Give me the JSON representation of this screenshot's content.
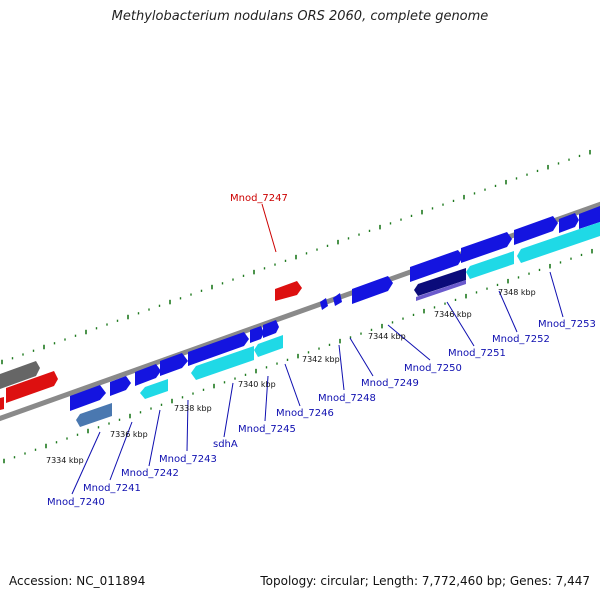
{
  "title": "Methylobacterium nodulans ORS 2060, complete genome",
  "footer": {
    "accession": "Accession: NC_011894",
    "stats": "Topology: circular; Length: 7,772,460 bp; Genes: 7,447"
  },
  "colors": {
    "backbone": "#8a8a8a",
    "forward_gene": "#1414e0",
    "reverse_gene": "#1fd9e6",
    "ncrna": "#dd1010",
    "tick": "#1f7a1f",
    "gene_label": "#0f0fb0",
    "highlight_label": "#cc0000",
    "other_gene": "#666666",
    "dark_gene": "#0b0b7a",
    "steel_gene": "#4a78b0",
    "violet_gene": "#6a5acd"
  },
  "scale_labels": [
    "7334 kbp",
    "7336 kbp",
    "7338 kbp",
    "7340 kbp",
    "7342 kbp",
    "7344 kbp",
    "7346 kbp",
    "7348 kbp"
  ],
  "gene_labels": [
    {
      "text": "Mnod_7247",
      "highlight": true
    },
    {
      "text": "Mnod_7240"
    },
    {
      "text": "Mnod_7241"
    },
    {
      "text": "Mnod_7242"
    },
    {
      "text": "Mnod_7243"
    },
    {
      "text": "sdhA"
    },
    {
      "text": "Mnod_7245"
    },
    {
      "text": "Mnod_7246"
    },
    {
      "text": "Mnod_7248"
    },
    {
      "text": "Mnod_7249"
    },
    {
      "text": "Mnod_7250"
    },
    {
      "text": "Mnod_7251"
    },
    {
      "text": "Mnod_7252"
    },
    {
      "text": "Mnod_7253"
    }
  ]
}
